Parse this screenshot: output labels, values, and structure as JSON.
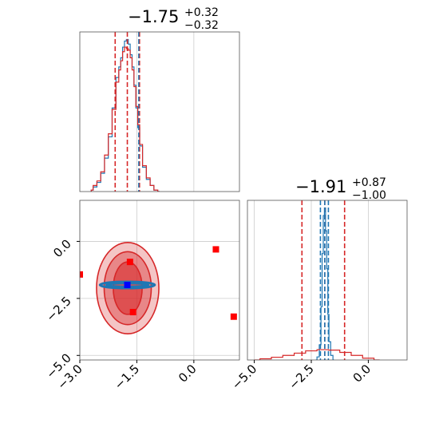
{
  "chart_data": [
    {
      "type": "histogram",
      "panel": "marginal-x",
      "title": {
        "value": "−1.75",
        "plus": "+0.32",
        "minus": "−0.32"
      },
      "xlim": [
        -3.0,
        1.2
      ],
      "quantile_lines": [
        -2.07,
        -1.75,
        -1.43
      ],
      "truth_lines": [
        -1.45
      ],
      "grid": true,
      "series": [
        {
          "color": "#1f77b4",
          "x": [
            -2.7,
            -2.6,
            -2.5,
            -2.4,
            -2.3,
            -2.2,
            -2.1,
            -2.0,
            -1.95,
            -1.9,
            -1.85,
            -1.8,
            -1.75,
            -1.7,
            -1.65,
            -1.6,
            -1.55,
            -1.5,
            -1.45,
            -1.4,
            -1.3,
            -1.2,
            -1.1,
            -1.0,
            -0.9
          ],
          "density": [
            0.01,
            0.03,
            0.06,
            0.12,
            0.22,
            0.36,
            0.55,
            0.75,
            0.82,
            0.88,
            0.95,
            0.99,
            1.0,
            0.97,
            0.9,
            0.82,
            0.7,
            0.55,
            0.42,
            0.3,
            0.16,
            0.08,
            0.04,
            0.01,
            0.0
          ]
        },
        {
          "color": "#d62728",
          "x": [
            -2.7,
            -2.6,
            -2.5,
            -2.4,
            -2.3,
            -2.2,
            -2.1,
            -2.0,
            -1.95,
            -1.9,
            -1.85,
            -1.8,
            -1.75,
            -1.7,
            -1.65,
            -1.6,
            -1.55,
            -1.5,
            -1.45,
            -1.4,
            -1.3,
            -1.2,
            -1.1,
            -1.0,
            -0.9
          ],
          "density": [
            0.01,
            0.04,
            0.07,
            0.13,
            0.24,
            0.38,
            0.54,
            0.72,
            0.8,
            0.86,
            0.92,
            0.95,
            0.94,
            0.93,
            0.88,
            0.8,
            0.69,
            0.56,
            0.44,
            0.31,
            0.17,
            0.09,
            0.04,
            0.01,
            0.0
          ]
        }
      ]
    },
    {
      "type": "contour",
      "panel": "joint",
      "xlim": [
        -3.0,
        1.2
      ],
      "ylim": [
        -5.2,
        1.8
      ],
      "xticks": [
        "−3.0",
        "−1.5",
        "0.0"
      ],
      "xtick_values": [
        -3.0,
        -1.5,
        0.0
      ],
      "yticks": [
        "0.0",
        "−2.5",
        "−5.0"
      ],
      "ytick_values": [
        0.0,
        -2.5,
        -5.0
      ],
      "grid": true,
      "red_contours": [
        {
          "cx": -1.74,
          "cy": -2.05,
          "rx": 0.38,
          "ry": 1.15,
          "opacity": 0.95
        },
        {
          "cx": -1.74,
          "cy": -2.05,
          "rx": 0.62,
          "ry": 1.6,
          "opacity": 0.65
        },
        {
          "cx": -1.74,
          "cy": -2.05,
          "rx": 0.82,
          "ry": 2.0,
          "opacity": 0.45
        }
      ],
      "blue_contours": [
        {
          "cx": -1.75,
          "cy": -1.91,
          "rx": 0.72,
          "ry": 0.14
        },
        {
          "cx": -1.75,
          "cy": -1.91,
          "rx": 0.55,
          "ry": 0.08
        }
      ],
      "red_points": [
        [
          -1.68,
          -0.9
        ],
        [
          0.58,
          -0.35
        ],
        [
          1.05,
          -3.3
        ],
        [
          -1.6,
          -3.1
        ],
        [
          -3.0,
          -1.45
        ]
      ],
      "blue_point": [
        -1.75,
        -1.91
      ]
    },
    {
      "type": "histogram",
      "panel": "marginal-y",
      "title": {
        "value": "−1.91",
        "plus": "+0.87",
        "minus": "−1.00"
      },
      "xlim": [
        -5.3,
        1.7
      ],
      "xticks": [
        "−5.0",
        "−2.5",
        "0.0"
      ],
      "xtick_values": [
        -5.0,
        -2.5,
        0.0
      ],
      "quantile_lines_red": [
        -2.91,
        -1.91,
        -1.04
      ],
      "quantile_lines_blue": [
        -2.1,
        -1.91,
        -1.75
      ],
      "grid": true,
      "series": [
        {
          "color": "#1f77b4",
          "x": [
            -2.3,
            -2.2,
            -2.1,
            -2.05,
            -2.0,
            -1.95,
            -1.9,
            -1.85,
            -1.8,
            -1.75,
            -1.7,
            -1.6,
            -1.5
          ],
          "density": [
            0.0,
            0.02,
            0.1,
            0.35,
            0.7,
            0.95,
            1.0,
            0.85,
            0.6,
            0.3,
            0.12,
            0.03,
            0.0
          ]
        },
        {
          "color": "#d62728",
          "x": [
            -5.0,
            -4.5,
            -4.0,
            -3.5,
            -3.0,
            -2.5,
            -2.0,
            -1.5,
            -1.0,
            -0.5,
            0.0,
            0.5
          ],
          "density": [
            0.0,
            0.008,
            0.018,
            0.03,
            0.045,
            0.06,
            0.068,
            0.065,
            0.05,
            0.03,
            0.012,
            0.0
          ]
        }
      ]
    }
  ]
}
